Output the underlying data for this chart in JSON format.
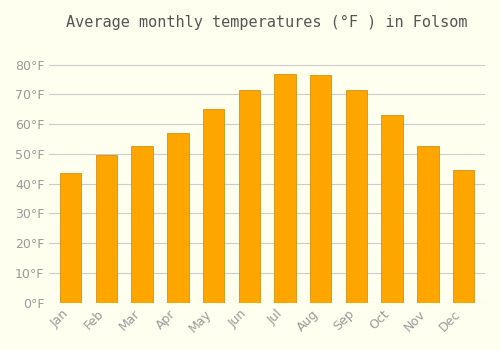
{
  "title": "Average monthly temperatures (°F ) in Folsom",
  "months": [
    "Jan",
    "Feb",
    "Mar",
    "Apr",
    "May",
    "Jun",
    "Jul",
    "Aug",
    "Sep",
    "Oct",
    "Nov",
    "Dec"
  ],
  "values": [
    43.5,
    49.5,
    52.5,
    57,
    65,
    71.5,
    77,
    76.5,
    71.5,
    63,
    52.5,
    44.5
  ],
  "bar_color": "#FFA500",
  "bar_edge_color": "#CC8400",
  "background_color": "#FFFFF0",
  "grid_color": "#CCCCCC",
  "text_color": "#999999",
  "ylim": [
    0,
    88
  ],
  "yticks": [
    0,
    10,
    20,
    30,
    40,
    50,
    60,
    70,
    80
  ],
  "title_fontsize": 11,
  "tick_fontsize": 9
}
